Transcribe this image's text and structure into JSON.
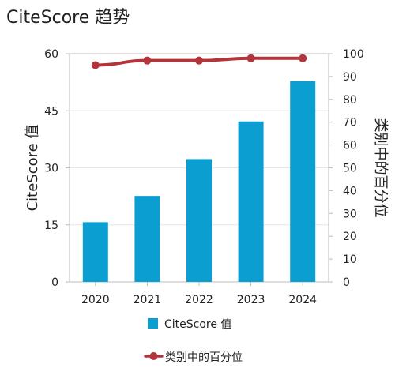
{
  "title": "CiteScore 趋势",
  "colors": {
    "bar": "#0a9fd0",
    "line": "#b3343a",
    "grid": "#e6e6e6",
    "frame": "#bdbdbd"
  },
  "chart_data": {
    "type": "bar",
    "categories": [
      "2020",
      "2021",
      "2022",
      "2023",
      "2024"
    ],
    "series": [
      {
        "name": "CiteScore 值",
        "type": "bar",
        "axis": "left",
        "values": [
          15.7,
          22.6,
          32.3,
          42.2,
          52.8
        ]
      },
      {
        "name": "类别中的百分位",
        "type": "line",
        "axis": "right",
        "values": [
          95,
          97,
          97,
          98,
          98
        ]
      }
    ],
    "ylabel": "CiteScore 值",
    "y2label": "类别中的百分位",
    "ylim": [
      0,
      60
    ],
    "yticks": [
      "0",
      "15",
      "30",
      "45",
      "60"
    ],
    "y2lim": [
      0,
      100
    ],
    "y2ticks": [
      "0",
      "10",
      "20",
      "30",
      "40",
      "50",
      "60",
      "70",
      "80",
      "90",
      "100"
    ],
    "grid": true,
    "legend_position": "bottom"
  }
}
